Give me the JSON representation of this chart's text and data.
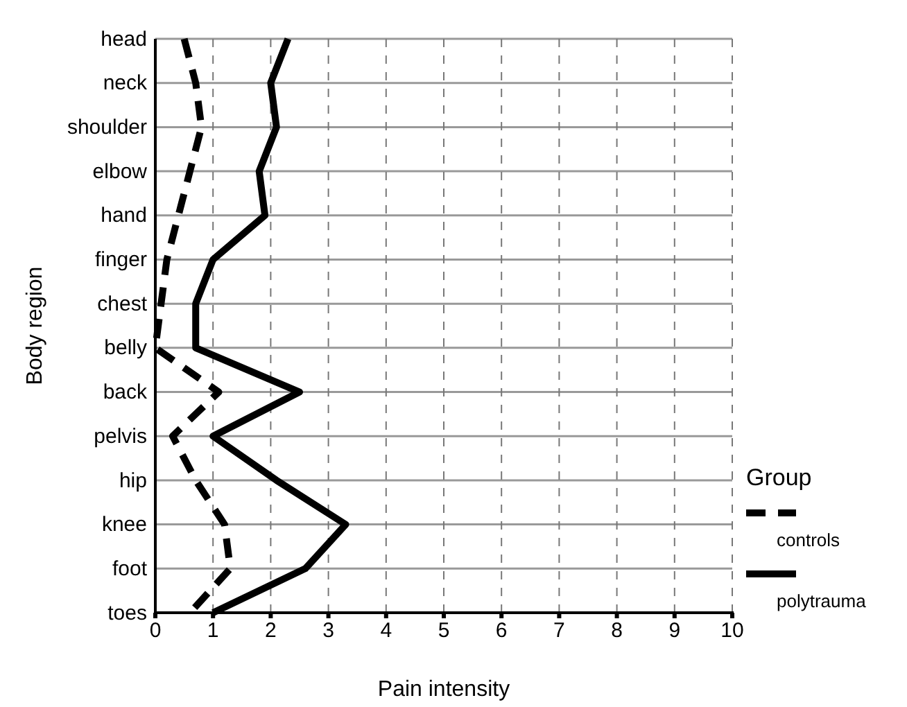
{
  "chart_data": {
    "type": "line",
    "orientation": "horizontal",
    "xlabel": "Pain intensity",
    "ylabel": "Body region",
    "legend_title": "Group",
    "categories": [
      "head",
      "neck",
      "shoulder",
      "elbow",
      "hand",
      "finger",
      "chest",
      "belly",
      "back",
      "pelvis",
      "hip",
      "knee",
      "foot",
      "toes"
    ],
    "series": [
      {
        "name": "controls",
        "color": "#000000",
        "line_style": "dashed",
        "values": [
          0.5,
          0.7,
          0.8,
          0.6,
          0.4,
          0.2,
          0.1,
          0,
          1.1,
          0.3,
          0.7,
          1.2,
          1.3,
          0.6
        ]
      },
      {
        "name": "polytrauma",
        "color": "#000000",
        "line_style": "solid",
        "values": [
          2.3,
          2.0,
          2.1,
          1.8,
          1.9,
          1.0,
          0.7,
          0.7,
          2.5,
          1.0,
          2.1,
          3.3,
          2.6,
          1.0
        ]
      }
    ],
    "xlim": [
      0,
      10
    ],
    "xticks": [
      0,
      1,
      2,
      3,
      4,
      5,
      6,
      7,
      8,
      9,
      10
    ],
    "grid": true,
    "legend": "right"
  }
}
